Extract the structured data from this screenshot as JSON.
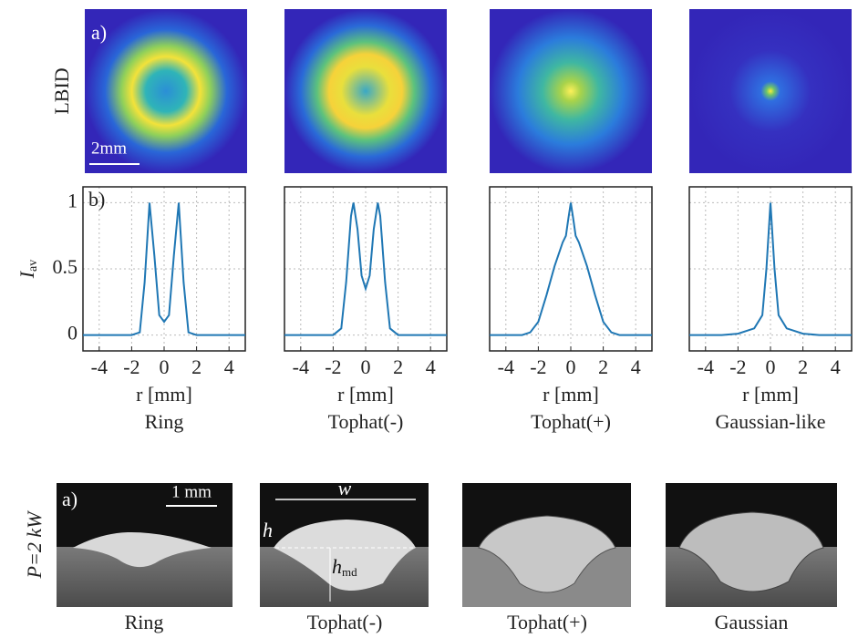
{
  "chart_data": [
    {
      "type": "line",
      "title": "Ring",
      "panel_label": "b)",
      "ylabel": {
        "main": "I",
        "sub": "av"
      },
      "xlabel": "r [mm]",
      "show_ytick_labels": true,
      "grid": true,
      "x": [
        -5,
        -4,
        -3,
        -2,
        -1.5,
        -1.2,
        -0.9,
        -0.6,
        -0.3,
        0,
        0.3,
        0.6,
        0.9,
        1.2,
        1.5,
        2,
        3,
        4,
        5
      ],
      "series": [
        {
          "color": "#1f77b4",
          "values": [
            0,
            0,
            0,
            0,
            0.02,
            0.4,
            1,
            0.6,
            0.15,
            0.1,
            0.15,
            0.6,
            1,
            0.4,
            0.02,
            0,
            0,
            0,
            0
          ]
        }
      ],
      "xlim": [
        -5,
        5
      ],
      "xticks": [
        -4,
        -2,
        0,
        2,
        4
      ],
      "ylim": [
        -0.12,
        1.12
      ],
      "yticks": [
        0,
        0.5,
        1
      ]
    },
    {
      "type": "line",
      "title": "Tophat(-)",
      "xlabel": "r [mm]",
      "show_ytick_labels": false,
      "grid": true,
      "x": [
        -5,
        -3,
        -2,
        -1.5,
        -1.2,
        -0.9,
        -0.75,
        -0.5,
        -0.25,
        0,
        0.25,
        0.5,
        0.75,
        0.9,
        1.2,
        1.5,
        2,
        3,
        5
      ],
      "series": [
        {
          "color": "#1f77b4",
          "values": [
            0,
            0,
            0,
            0.05,
            0.4,
            0.9,
            1,
            0.8,
            0.45,
            0.35,
            0.45,
            0.8,
            1,
            0.9,
            0.4,
            0.05,
            0,
            0,
            0
          ]
        }
      ],
      "xlim": [
        -5,
        5
      ],
      "xticks": [
        -4,
        -2,
        0,
        2,
        4
      ],
      "ylim": [
        -0.12,
        1.12
      ],
      "yticks": [
        0,
        0.5,
        1
      ]
    },
    {
      "type": "line",
      "title": "Tophat(+)",
      "xlabel": "r [mm]",
      "show_ytick_labels": false,
      "grid": true,
      "x": [
        -5,
        -3,
        -2.5,
        -2,
        -1.5,
        -1,
        -0.5,
        -0.3,
        -0.15,
        0,
        0.15,
        0.3,
        0.5,
        1,
        1.5,
        2,
        2.5,
        3,
        5
      ],
      "series": [
        {
          "color": "#1f77b4",
          "values": [
            0,
            0,
            0.02,
            0.1,
            0.3,
            0.52,
            0.7,
            0.75,
            0.88,
            1,
            0.88,
            0.75,
            0.7,
            0.52,
            0.3,
            0.1,
            0.02,
            0,
            0
          ]
        }
      ],
      "xlim": [
        -5,
        5
      ],
      "xticks": [
        -4,
        -2,
        0,
        2,
        4
      ],
      "ylim": [
        -0.12,
        1.12
      ],
      "yticks": [
        0,
        0.5,
        1
      ]
    },
    {
      "type": "line",
      "title": "Gaussian-like",
      "xlabel": "r [mm]",
      "show_ytick_labels": false,
      "grid": true,
      "x": [
        -5,
        -3,
        -2,
        -1.5,
        -1,
        -0.5,
        -0.25,
        0,
        0.25,
        0.5,
        1,
        1.5,
        2,
        3,
        5
      ],
      "series": [
        {
          "color": "#1f77b4",
          "values": [
            0,
            0,
            0.01,
            0.03,
            0.05,
            0.15,
            0.5,
            1,
            0.5,
            0.15,
            0.05,
            0.03,
            0.01,
            0,
            0
          ]
        }
      ],
      "xlim": [
        -5,
        5
      ],
      "xticks": [
        -4,
        -2,
        0,
        2,
        4
      ],
      "ylim": [
        -0.12,
        1.12
      ],
      "yticks": [
        0,
        0.5,
        1
      ]
    }
  ],
  "panel_a": {
    "label": "a)",
    "row_label": "LBID",
    "scale_bar": "2mm"
  },
  "panel_c": {
    "label": "a)",
    "scale_bar": "1 mm",
    "row_label": "P=2 kW",
    "w": "w",
    "h": "h",
    "h_md": {
      "main": "h",
      "sub": "md"
    },
    "captions": [
      "Ring",
      "Tophat(-)",
      "Tophat(+)",
      "Gaussian"
    ]
  }
}
